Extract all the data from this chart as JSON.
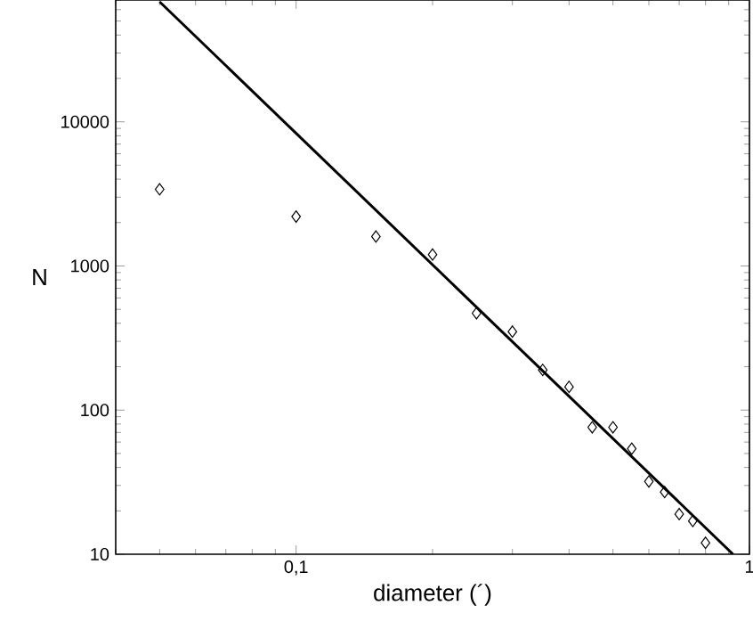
{
  "chart_data": {
    "type": "scatter",
    "xlabel": "diameter (´)",
    "ylabel": "N",
    "log": "xy",
    "grid": false,
    "xlim": [
      0.04,
      1
    ],
    "ylim": [
      10,
      70000
    ],
    "xticks": [
      {
        "value": 0.1,
        "label": "0,1"
      },
      1
    ],
    "yticks": [
      10,
      100,
      1000,
      10000
    ],
    "series": [
      {
        "marker": "diamond",
        "color": "#000000",
        "x": [
          0.05,
          0.1,
          0.15,
          0.2,
          0.25,
          0.3,
          0.35,
          0.4,
          0.45,
          0.5,
          0.55,
          0.6,
          0.65,
          0.7,
          0.75,
          0.8
        ],
        "values": [
          3400,
          2200,
          1600,
          1200,
          470,
          350,
          190,
          145,
          76,
          76,
          54,
          32,
          27,
          19,
          17,
          12
        ]
      },
      {
        "type": "line",
        "marker": "none",
        "line_style": "solid",
        "color": "#000000",
        "x": [
          0.05,
          0.92
        ],
        "values": [
          68000,
          10
        ]
      }
    ]
  }
}
